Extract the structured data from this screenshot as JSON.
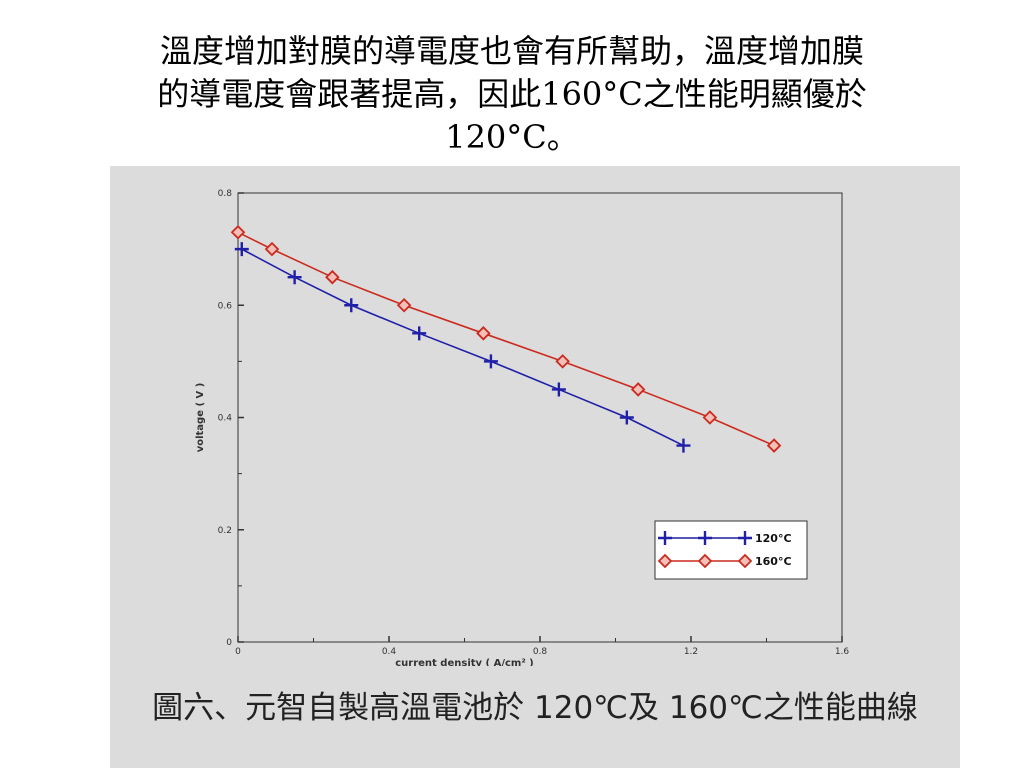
{
  "heading": {
    "line1": "溫度增加對膜的導電度也會有所幫助，溫度增加膜",
    "line2": "的導電度會跟著提高，因此160°C之性能明顯優於",
    "line3": "120°C。"
  },
  "caption": "圖六、元智自製高溫電池於 120℃及 160℃之性能曲線",
  "colors": {
    "series_120": "#1f1fa8",
    "series_160": "#cc2a1e",
    "background": "#dcdcdc"
  },
  "chart_data": {
    "type": "line",
    "title": "",
    "xlabel": "current density ( A/cm² )",
    "ylabel": "voltage ( V )",
    "xlim": [
      0,
      1.6
    ],
    "ylim": [
      0,
      0.8
    ],
    "x_ticks": [
      "0",
      "0.4",
      "0.8",
      "1.2",
      "1.6"
    ],
    "y_ticks": [
      "0",
      "0.2",
      "0.4",
      "0.6",
      "0.8"
    ],
    "grid": false,
    "legend": "bottom-right",
    "series": [
      {
        "name": "120°C",
        "marker": "plus",
        "color": "#1f1fa8",
        "x": [
          0.01,
          0.15,
          0.3,
          0.48,
          0.67,
          0.85,
          1.03,
          1.18
        ],
        "y": [
          0.7,
          0.65,
          0.6,
          0.55,
          0.5,
          0.45,
          0.4,
          0.35
        ]
      },
      {
        "name": "160°C",
        "marker": "diamond",
        "color": "#cc2a1e",
        "x": [
          0.0,
          0.09,
          0.25,
          0.44,
          0.65,
          0.86,
          1.06,
          1.25,
          1.42
        ],
        "y": [
          0.73,
          0.7,
          0.65,
          0.6,
          0.55,
          0.5,
          0.45,
          0.4,
          0.35
        ]
      }
    ]
  }
}
